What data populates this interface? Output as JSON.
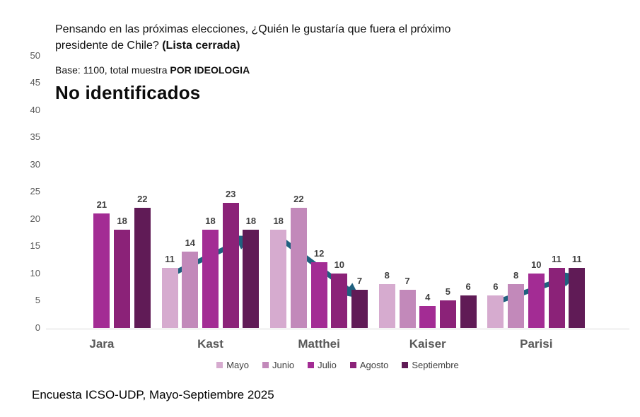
{
  "header": {
    "question_line1": "Pensando en las próximas elecciones, ¿Quién le gustaría que fuera el próximo",
    "question_line2": "presidente de Chile? ",
    "question_emphasis": "(Lista cerrada)",
    "base_prefix": "Base: 1100, total muestra ",
    "base_emphasis": "POR IDEOLOGIA"
  },
  "chart_data": {
    "type": "bar",
    "title": "No identificados",
    "categories": [
      "Jara",
      "Kast",
      "Matthei",
      "Kaiser",
      "Parisi"
    ],
    "series": [
      {
        "name": "Mayo",
        "color": "#D6ABCF",
        "values": [
          null,
          11,
          18,
          8,
          6
        ]
      },
      {
        "name": "Junio",
        "color": "#C289BA",
        "values": [
          null,
          14,
          22,
          7,
          8
        ]
      },
      {
        "name": "Julio",
        "color": "#A32C94",
        "values": [
          21,
          18,
          12,
          4,
          10
        ]
      },
      {
        "name": "Agosto",
        "color": "#8B2278",
        "values": [
          18,
          23,
          10,
          5,
          11
        ]
      },
      {
        "name": "Septiembre",
        "color": "#601B56",
        "values": [
          22,
          18,
          7,
          6,
          11
        ]
      }
    ],
    "ylim": [
      0,
      50
    ],
    "ytick_step": 5,
    "grid": false,
    "data_labels": true,
    "legend_position": "bottom",
    "annotation_color": "#20617F",
    "annotations": [
      {
        "type": "trend-arrow",
        "direction": "up",
        "category": "Kast",
        "from_series": "Mayo",
        "to_series": "Septiembre"
      },
      {
        "type": "trend-arrow",
        "direction": "down",
        "category": "Matthei",
        "from_series": "Mayo",
        "to_series": "Septiembre"
      },
      {
        "type": "trend-arrow",
        "direction": "up",
        "category": "Parisi",
        "from_series": "Mayo",
        "to_series": "Septiembre"
      }
    ]
  },
  "footer": {
    "source": "Encuesta ICSO-UDP, Mayo-Septiembre 2025"
  }
}
